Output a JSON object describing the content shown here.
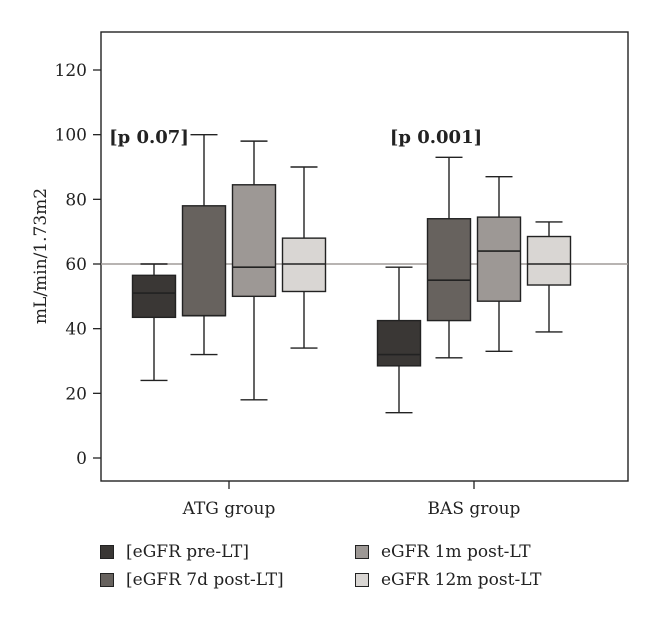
{
  "chart_data": {
    "type": "box",
    "ylabel": "mL/min/1.73m2",
    "xlabel": "",
    "ylim": [
      -8,
      132
    ],
    "yticks": [
      0,
      20,
      40,
      60,
      80,
      100,
      120
    ],
    "reference_line": 60,
    "groups": [
      {
        "name": "ATG group",
        "annotation": "[p 0.07]",
        "boxes": [
          {
            "series": 0,
            "min": 24,
            "q1": 43.5,
            "median": 51,
            "q3": 56.5,
            "max": 60
          },
          {
            "series": 1,
            "min": 32,
            "q1": 44,
            "median": 44,
            "q3": 78,
            "max": 100
          },
          {
            "series": 2,
            "min": 18,
            "q1": 50,
            "median": 59,
            "q3": 84.5,
            "max": 98
          },
          {
            "series": 3,
            "min": 34,
            "q1": 51.5,
            "median": 60,
            "q3": 68,
            "max": 90
          }
        ]
      },
      {
        "name": "BAS group",
        "annotation": "[p 0.001]",
        "boxes": [
          {
            "series": 0,
            "min": 14,
            "q1": 28.5,
            "median": 32,
            "q3": 42.5,
            "max": 59
          },
          {
            "series": 1,
            "min": 31,
            "q1": 42.5,
            "median": 55,
            "q3": 74,
            "max": 93
          },
          {
            "series": 2,
            "min": 33,
            "q1": 48.5,
            "median": 64,
            "q3": 74.5,
            "max": 87
          },
          {
            "series": 3,
            "min": 39,
            "q1": 53.5,
            "median": 60,
            "q3": 68.5,
            "max": 73
          }
        ]
      }
    ],
    "series": [
      {
        "name": "[eGFR pre-LT]",
        "color": "#3a3735"
      },
      {
        "name": "[eGFR 7d post-LT]",
        "color": "#67625e"
      },
      {
        "name": "eGFR 1m post-LT",
        "color": "#9d9895"
      },
      {
        "name": "eGFR 12m post-LT",
        "color": "#d9d6d3"
      }
    ],
    "legend": "bottom"
  }
}
